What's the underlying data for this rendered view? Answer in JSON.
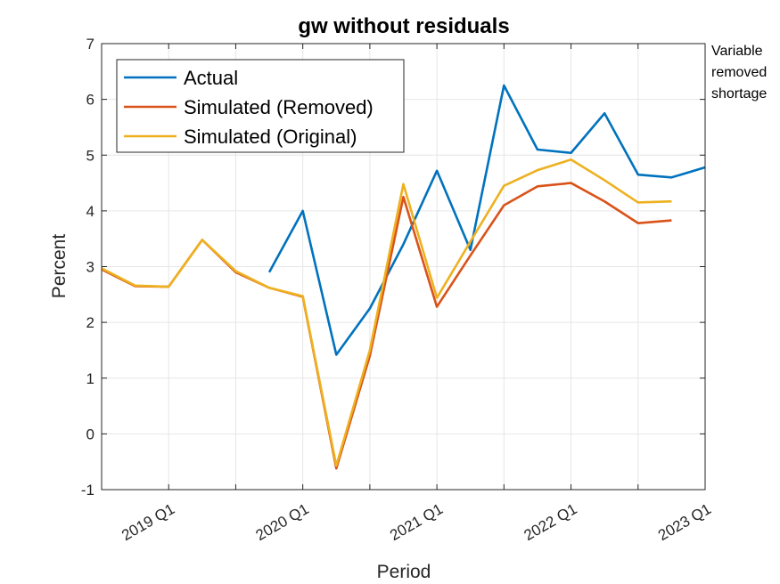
{
  "chart_data": {
    "type": "line",
    "title": "gw without residuals",
    "xlabel": "Period",
    "ylabel": "Percent",
    "ylim": [
      -1,
      7
    ],
    "yticks": [
      "-1",
      "0",
      "1",
      "2",
      "3",
      "4",
      "5",
      "6",
      "7"
    ],
    "x": [
      "2018 Q3",
      "2018 Q4",
      "2019 Q1",
      "2019 Q2",
      "2019 Q3",
      "2019 Q4",
      "2020 Q1",
      "2020 Q2",
      "2020 Q3",
      "2020 Q4",
      "2021 Q1",
      "2021 Q2",
      "2021 Q3",
      "2021 Q4",
      "2022 Q1",
      "2022 Q2",
      "2022 Q3",
      "2022 Q4",
      "2023 Q1"
    ],
    "xticks": [
      "2019 Q1",
      "2020 Q1",
      "2021 Q1",
      "2022 Q1",
      "2023 Q1"
    ],
    "grid": true,
    "legend_position": "top-left",
    "series": [
      {
        "name": "Actual",
        "color": "#0072BD",
        "values": [
          null,
          null,
          null,
          null,
          null,
          2.9,
          4.0,
          1.42,
          2.25,
          3.4,
          4.72,
          3.3,
          6.25,
          5.1,
          5.04,
          5.75,
          4.65,
          4.6,
          4.78
        ]
      },
      {
        "name": "Simulated (Removed)",
        "color": "#D95319",
        "values": [
          2.95,
          2.65,
          2.64,
          3.48,
          2.9,
          2.62,
          2.46,
          -0.62,
          1.4,
          4.25,
          2.28,
          3.2,
          4.1,
          4.44,
          4.5,
          4.17,
          3.78,
          3.83,
          null
        ]
      },
      {
        "name": "Simulated (Original)",
        "color": "#EDB120",
        "values": [
          2.97,
          2.66,
          2.64,
          3.48,
          2.92,
          2.62,
          2.47,
          -0.57,
          1.5,
          4.48,
          2.44,
          3.45,
          4.45,
          4.73,
          4.92,
          4.55,
          4.15,
          4.17,
          null
        ]
      }
    ]
  },
  "side_note": {
    "lines": [
      "Variable",
      "removed",
      "shortage"
    ]
  }
}
